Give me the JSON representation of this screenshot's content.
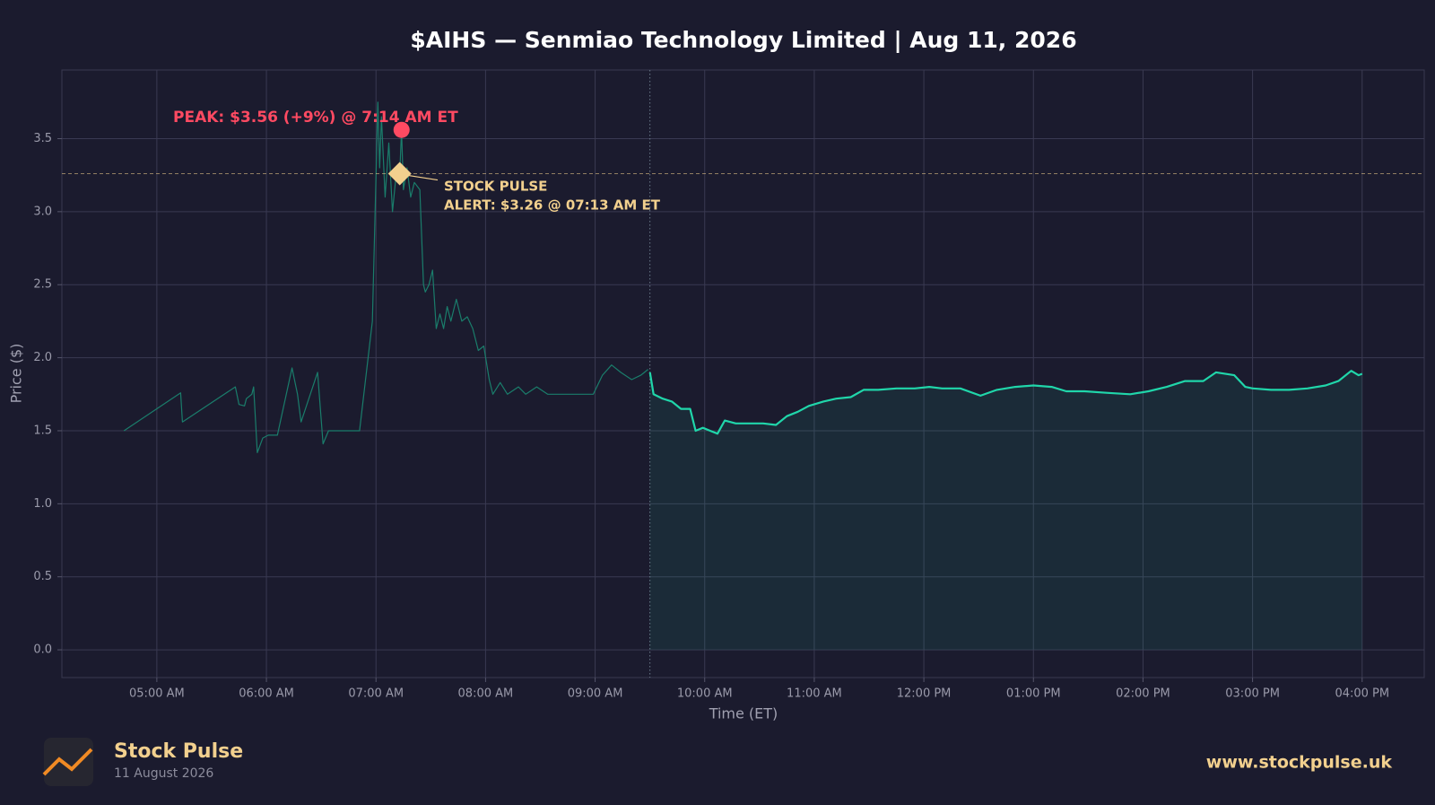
{
  "chart_data": {
    "type": "line",
    "title": "$AIHS — Senmiao Technology Limited  |  Aug 11, 2026",
    "xlabel": "Time (ET)",
    "ylabel": "Price ($)",
    "grid": true,
    "xlim": [
      "04:08",
      "16:34"
    ],
    "xticks": [
      {
        "value": "05:00",
        "label": "05:00 AM"
      },
      {
        "value": "06:00",
        "label": "06:00 AM"
      },
      {
        "value": "07:00",
        "label": "07:00 AM"
      },
      {
        "value": "08:00",
        "label": "08:00 AM"
      },
      {
        "value": "09:00",
        "label": "09:00 AM"
      },
      {
        "value": "10:00",
        "label": "10:00 AM"
      },
      {
        "value": "11:00",
        "label": "11:00 AM"
      },
      {
        "value": "12:00",
        "label": "12:00 PM"
      },
      {
        "value": "13:00",
        "label": "01:00 PM"
      },
      {
        "value": "14:00",
        "label": "02:00 PM"
      },
      {
        "value": "15:00",
        "label": "03:00 PM"
      },
      {
        "value": "16:00",
        "label": "04:00 PM"
      }
    ],
    "ylim": [
      -0.19,
      3.97
    ],
    "yticks": [
      {
        "value": 0,
        "label": "0.0"
      },
      0.5,
      {
        "value": 1,
        "label": "1.0"
      },
      1.5,
      {
        "value": 2,
        "label": "2.0"
      },
      2.5,
      {
        "value": 3,
        "label": "3.0"
      },
      3.5
    ],
    "session_open": "09:30",
    "series": [
      {
        "color": "#1a7d6b",
        "fill": false,
        "x": [
          "04:42",
          "05:13",
          "05:14",
          "05:43",
          "05:45",
          "05:48",
          "05:49",
          "05:52",
          "05:53",
          "05:55",
          "05:58",
          "06:01",
          "06:06",
          "06:14",
          "06:17",
          "06:19",
          "06:28",
          "06:31",
          "06:34",
          "06:51",
          "06:58",
          "07:01",
          "07:02",
          "07:03",
          "07:05",
          "07:07",
          "07:09",
          "07:11",
          "07:13",
          "07:14",
          "07:15",
          "07:17",
          "07:19",
          "07:21",
          "07:24",
          "07:26",
          "07:27",
          "07:29",
          "07:31",
          "07:33",
          "07:35",
          "07:37",
          "07:39",
          "07:41",
          "07:44",
          "07:47",
          "07:50",
          "07:53",
          "07:56",
          "07:59",
          "08:02",
          "08:04",
          "08:08",
          "08:12",
          "08:18",
          "08:22",
          "08:28",
          "08:34",
          "08:44",
          "08:59",
          "09:04",
          "09:09",
          "09:14",
          "09:20",
          "09:25",
          "09:29"
        ],
        "values": [
          1.5,
          1.76,
          1.56,
          1.8,
          1.68,
          1.67,
          1.72,
          1.75,
          1.8,
          1.35,
          1.45,
          1.47,
          1.47,
          1.93,
          1.75,
          1.56,
          1.9,
          1.41,
          1.5,
          1.5,
          2.25,
          3.75,
          3.3,
          3.65,
          3.1,
          3.47,
          3.0,
          3.25,
          3.26,
          3.56,
          3.15,
          3.3,
          3.1,
          3.2,
          3.15,
          2.5,
          2.45,
          2.5,
          2.6,
          2.2,
          2.3,
          2.2,
          2.35,
          2.25,
          2.4,
          2.25,
          2.28,
          2.2,
          2.05,
          2.08,
          1.85,
          1.75,
          1.83,
          1.75,
          1.8,
          1.75,
          1.8,
          1.75,
          1.75,
          1.75,
          1.88,
          1.95,
          1.9,
          1.85,
          1.88,
          1.92
        ]
      },
      {
        "color": "#20d6aa",
        "fill": true,
        "x": [
          "09:30",
          "09:32",
          "09:37",
          "09:42",
          "09:47",
          "09:52",
          "09:55",
          "09:59",
          "10:03",
          "10:07",
          "10:11",
          "10:17",
          "10:25",
          "10:32",
          "10:39",
          "10:45",
          "10:51",
          "10:57",
          "11:05",
          "11:12",
          "11:20",
          "11:27",
          "11:35",
          "11:45",
          "11:55",
          "12:03",
          "12:10",
          "12:20",
          "12:31",
          "12:40",
          "12:50",
          "13:00",
          "13:10",
          "13:18",
          "13:28",
          "13:40",
          "13:53",
          "14:03",
          "14:13",
          "14:23",
          "14:33",
          "14:40",
          "14:50",
          "14:56",
          "15:00",
          "15:10",
          "15:20",
          "15:30",
          "15:40",
          "15:47",
          "15:54",
          "15:58",
          "16:00"
        ],
        "values": [
          1.9,
          1.75,
          1.72,
          1.7,
          1.65,
          1.65,
          1.5,
          1.52,
          1.5,
          1.48,
          1.57,
          1.55,
          1.55,
          1.55,
          1.54,
          1.6,
          1.63,
          1.67,
          1.7,
          1.72,
          1.73,
          1.78,
          1.78,
          1.79,
          1.79,
          1.8,
          1.79,
          1.79,
          1.74,
          1.78,
          1.8,
          1.81,
          1.8,
          1.77,
          1.77,
          1.76,
          1.75,
          1.77,
          1.8,
          1.84,
          1.84,
          1.9,
          1.88,
          1.8,
          1.79,
          1.78,
          1.78,
          1.79,
          1.81,
          1.84,
          1.91,
          1.88,
          1.89
        ]
      }
    ],
    "annotations": [
      {
        "kind": "peak",
        "text": "PEAK: $3.56 (+9%) @ 7:14 AM ET",
        "x": "07:14",
        "y": 3.56,
        "color": "#ff4a62"
      },
      {
        "kind": "alert",
        "text": [
          "STOCK PULSE",
          "ALERT: $3.26 @ 07:13 AM ET"
        ],
        "x": "07:13",
        "y": 3.26,
        "color": "#f2d08e"
      }
    ]
  },
  "footer": {
    "brand": "Stock Pulse",
    "date": "11 August 2026",
    "url": "www.stockpulse.uk"
  }
}
